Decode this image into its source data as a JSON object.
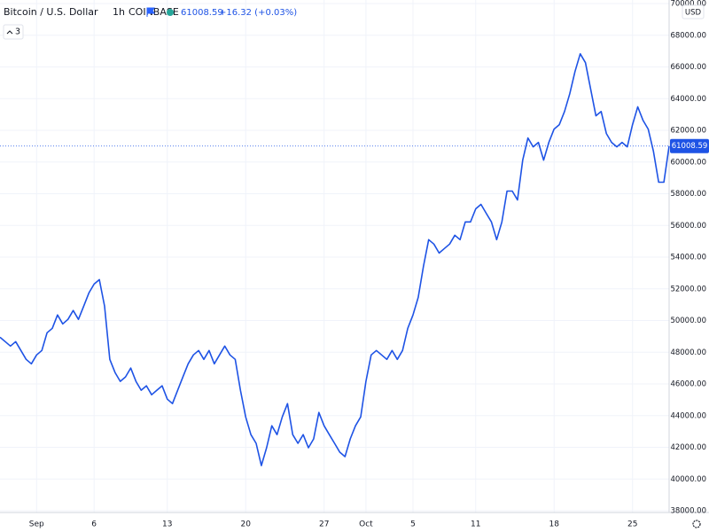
{
  "header": {
    "symbol": "Bitcoin / U.S. Dollar",
    "interval": "1h",
    "exchange": "COINBASE",
    "change": "+16.32 (+0.03%)",
    "indicators": "3",
    "currency": "USD"
  },
  "chart_data": {
    "type": "line",
    "color": "#1e53e5",
    "grid": true,
    "categories": [
      null,
      null,
      null,
      null,
      null,
      null,
      null,
      "Sep",
      null,
      null,
      null,
      null,
      null,
      null,
      null,
      null,
      null,
      null,
      "6",
      null,
      null,
      null,
      null,
      null,
      null,
      null,
      null,
      null,
      null,
      null,
      null,
      null,
      "13",
      null,
      null,
      null,
      null,
      null,
      null,
      null,
      null,
      null,
      null,
      null,
      null,
      null,
      null,
      "20",
      null,
      null,
      null,
      null,
      null,
      null,
      null,
      null,
      null,
      null,
      null,
      null,
      null,
      null,
      "27",
      null,
      null,
      null,
      null,
      null,
      null,
      null,
      "Oct",
      null,
      null,
      null,
      null,
      null,
      null,
      null,
      null,
      "5",
      null,
      null,
      null,
      null,
      null,
      null,
      null,
      null,
      null,
      null,
      null,
      "11",
      null,
      null,
      null,
      null,
      null,
      null,
      null,
      null,
      null,
      null,
      null,
      null,
      null,
      null,
      "18",
      null,
      null,
      null,
      null,
      null,
      null,
      null,
      null,
      null,
      null,
      null,
      null,
      null,
      null,
      "25",
      null,
      null,
      null,
      null,
      null,
      null,
      null
    ],
    "values": [
      48950,
      48670,
      48390,
      48670,
      48110,
      47550,
      47270,
      47830,
      48110,
      49230,
      49510,
      50350,
      49790,
      50070,
      50630,
      50070,
      50900,
      51740,
      52300,
      52580,
      50900,
      47550,
      46720,
      46160,
      46440,
      47000,
      46160,
      45600,
      45880,
      45320,
      45600,
      45880,
      45040,
      44760,
      45600,
      46440,
      47270,
      47830,
      48110,
      47550,
      48110,
      47270,
      47830,
      48390,
      47830,
      47550,
      45600,
      43920,
      42800,
      42250,
      40850,
      41970,
      43360,
      42800,
      43920,
      44760,
      42800,
      42250,
      42800,
      41970,
      42530,
      44200,
      43360,
      42800,
      42250,
      41690,
      41410,
      42530,
      43360,
      43920,
      46160,
      47830,
      48110,
      47830,
      47550,
      48110,
      47550,
      48110,
      49510,
      50350,
      51460,
      53420,
      55100,
      54820,
      54260,
      54540,
      54820,
      55380,
      55100,
      56220,
      56220,
      57050,
      57330,
      56770,
      56220,
      55100,
      56220,
      58170,
      58170,
      57610,
      60120,
      61520,
      60960,
      61240,
      60120,
      61240,
      62080,
      62360,
      63190,
      64310,
      65710,
      66830,
      66270,
      64590,
      62920,
      63190,
      61800,
      61240,
      60960,
      61240,
      60960,
      62360,
      63480,
      62640,
      62080,
      60680,
      58730,
      58730,
      61008.59
    ],
    "ylim": [
      38000,
      70000
    ],
    "yticks": [
      {
        "value": 38000,
        "label": "38000.00"
      },
      {
        "value": 40000,
        "label": "40000.00"
      },
      {
        "value": 42000,
        "label": "42000.00"
      },
      {
        "value": 44000,
        "label": "44000.00"
      },
      {
        "value": 46000,
        "label": "46000.00"
      },
      {
        "value": 48000,
        "label": "48000.00"
      },
      {
        "value": 50000,
        "label": "50000.00"
      },
      {
        "value": 52000,
        "label": "52000.00"
      },
      {
        "value": 54000,
        "label": "54000.00"
      },
      {
        "value": 56000,
        "label": "56000.00"
      },
      {
        "value": 58000,
        "label": "58000.00"
      },
      {
        "value": 60000,
        "label": "60000.00"
      },
      {
        "value": 62000,
        "label": "62000.00"
      },
      {
        "value": 64000,
        "label": "64000.00"
      },
      {
        "value": 66000,
        "label": "66000.00"
      },
      {
        "value": 68000,
        "label": "68000.00"
      },
      {
        "value": 70000,
        "label": "70000.00"
      }
    ]
  }
}
